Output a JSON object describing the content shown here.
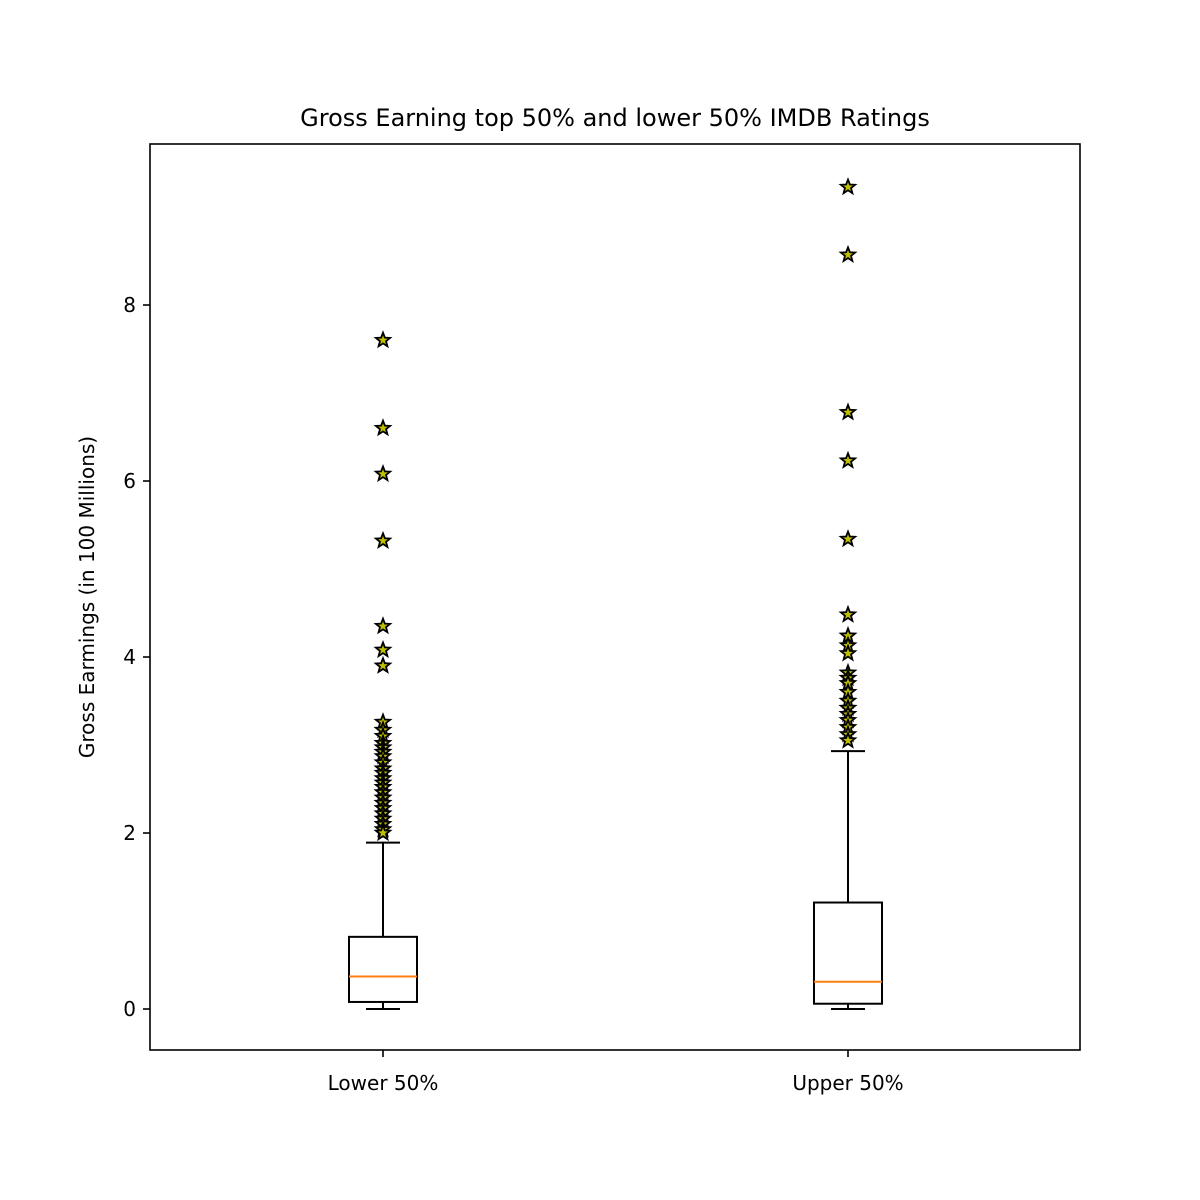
{
  "chart_data": {
    "type": "box",
    "title": "Gross Earning top 50% and lower 50% IMDB Ratings",
    "xlabel": "",
    "ylabel": "Gross Earmings (in 100 Millions)",
    "ylim": [
      -0.47,
      9.82
    ],
    "yticks": [
      0,
      2,
      4,
      6,
      8
    ],
    "grid": false,
    "legend": "none",
    "categories": [
      "Lower 50%",
      "Upper 50%"
    ],
    "boxes": [
      {
        "category": "Lower 50%",
        "whisker_low": 0.0,
        "q1": 0.08,
        "median": 0.37,
        "q3": 0.82,
        "whisker_high": 1.89,
        "outliers": [
          7.6,
          6.6,
          6.08,
          5.32,
          4.35,
          4.08,
          3.9,
          3.26,
          3.17,
          3.1,
          3.02,
          2.97,
          2.92,
          2.87,
          2.8,
          2.73,
          2.68,
          2.62,
          2.57,
          2.52,
          2.46,
          2.4,
          2.34,
          2.28,
          2.22,
          2.16,
          2.1,
          2.04,
          2.0
        ]
      },
      {
        "category": "Upper 50%",
        "whisker_low": 0.0,
        "q1": 0.06,
        "median": 0.31,
        "q3": 1.21,
        "whisker_high": 2.93,
        "outliers": [
          9.34,
          8.57,
          6.78,
          6.23,
          5.34,
          4.48,
          4.24,
          4.13,
          4.04,
          3.82,
          3.76,
          3.7,
          3.6,
          3.5,
          3.42,
          3.35,
          3.28,
          3.2,
          3.12,
          3.05
        ]
      }
    ],
    "colors": {
      "box": "#000000",
      "median": "#ff7f0e",
      "outlier_fill": "#bfbf00",
      "outlier_edge": "#000000"
    },
    "outlier_marker": "star-icon"
  }
}
